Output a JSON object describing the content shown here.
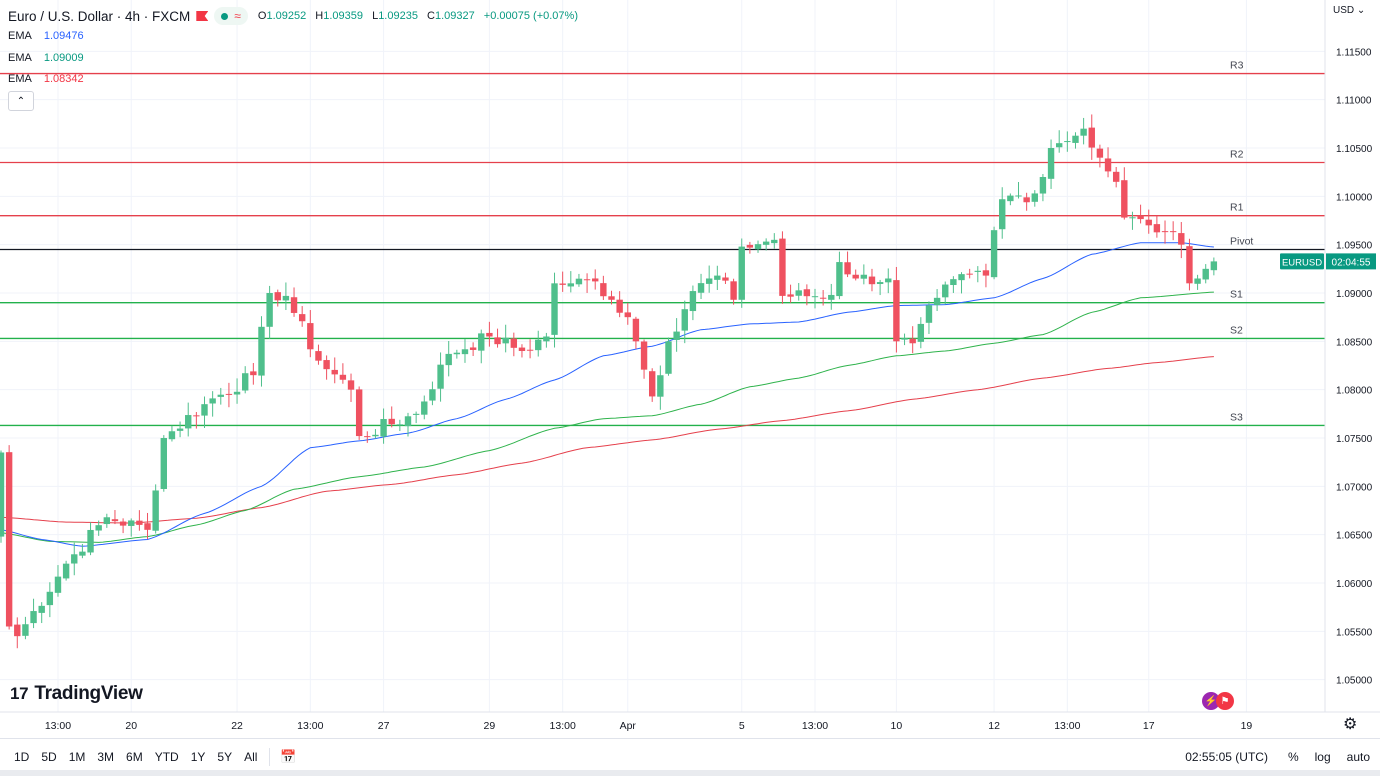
{
  "header": {
    "symbol": "Euro / U.S. Dollar · 4h · FXCM",
    "open_label": "O",
    "open": "1.09252",
    "high_label": "H",
    "high": "1.09359",
    "low_label": "L",
    "low": "1.09235",
    "close_label": "C",
    "close": "1.09327",
    "change": "+0.00075 (+0.07%)",
    "icons": [
      "flag-icon",
      "status-dot-icon",
      "wave-icon"
    ]
  },
  "indicators": [
    {
      "label": "EMA",
      "value": "1.09476",
      "color": "#2962ff"
    },
    {
      "label": "EMA",
      "value": "1.09009",
      "color": "#089981"
    },
    {
      "label": "EMA",
      "value": "1.08342",
      "color": "#f23645"
    }
  ],
  "price_scale": {
    "currency": "USD"
  },
  "symbol_tag": {
    "name": "EURUSD",
    "countdown": "02:04:55",
    "color": "#089981"
  },
  "logo_text": "TradingView",
  "bottom_bar": {
    "timeframes": [
      "1D",
      "5D",
      "1M",
      "3M",
      "6M",
      "YTD",
      "1Y",
      "5Y",
      "All"
    ],
    "clock": "02:55:05 (UTC)",
    "percent": "%",
    "log": "log",
    "auto": "auto"
  },
  "colors": {
    "up": "#4fbf8c",
    "down": "#ef5160",
    "ema_fast": "#2962ff",
    "ema_mid": "#2fb34c",
    "ema_slow": "#e5404c",
    "resistance": "#e5404c",
    "support": "#22b14c",
    "pivot": "#131722"
  },
  "chart_data": {
    "type": "candlestick",
    "title": "",
    "y_axis": {
      "ylim": [
        1.045,
        1.12
      ],
      "ticks": [
        "1.05000",
        "1.05500",
        "1.06000",
        "1.06500",
        "1.07000",
        "1.07500",
        "1.08000",
        "1.08500",
        "1.09000",
        "1.09500",
        "1.10000",
        "1.10500",
        "1.11000",
        "1.11500"
      ]
    },
    "x_axis": {
      "ticks": [
        {
          "label": "13:00",
          "bar": 7
        },
        {
          "label": "20",
          "bar": 16
        },
        {
          "label": "22",
          "bar": 29
        },
        {
          "label": "13:00",
          "bar": 38
        },
        {
          "label": "27",
          "bar": 47
        },
        {
          "label": "29",
          "bar": 60
        },
        {
          "label": "13:00",
          "bar": 69
        },
        {
          "label": "Apr",
          "bar": 77
        },
        {
          "label": "5",
          "bar": 91
        },
        {
          "label": "13:00",
          "bar": 100
        },
        {
          "label": "10",
          "bar": 110
        },
        {
          "label": "12",
          "bar": 122
        },
        {
          "label": "13:00",
          "bar": 131
        },
        {
          "label": "17",
          "bar": 141
        },
        {
          "label": "19",
          "bar": 153
        }
      ]
    },
    "levels": [
      {
        "name": "R3",
        "value": 1.1127,
        "kind": "resistance"
      },
      {
        "name": "R2",
        "value": 1.1035,
        "kind": "resistance"
      },
      {
        "name": "R1",
        "value": 1.098,
        "kind": "resistance"
      },
      {
        "name": "Pivot",
        "value": 1.0945,
        "kind": "pivot"
      },
      {
        "name": "S1",
        "value": 1.089,
        "kind": "support"
      },
      {
        "name": "S2",
        "value": 1.0853,
        "kind": "support"
      },
      {
        "name": "S3",
        "value": 1.0763,
        "kind": "support"
      }
    ],
    "key_closes": [
      {
        "bar": 0,
        "close": 1.0735
      },
      {
        "bar": 1,
        "close": 1.0555
      },
      {
        "bar": 2,
        "close": 1.0545
      },
      {
        "bar": 8,
        "close": 1.062
      },
      {
        "bar": 13,
        "close": 1.0668
      },
      {
        "bar": 18,
        "close": 1.0655
      },
      {
        "bar": 20,
        "close": 1.075
      },
      {
        "bar": 25,
        "close": 1.0785
      },
      {
        "bar": 31,
        "close": 1.0815
      },
      {
        "bar": 33,
        "close": 1.09
      },
      {
        "bar": 35,
        "close": 1.0897
      },
      {
        "bar": 39,
        "close": 1.083
      },
      {
        "bar": 43,
        "close": 1.08
      },
      {
        "bar": 44,
        "close": 1.0752
      },
      {
        "bar": 51,
        "close": 1.0775
      },
      {
        "bar": 55,
        "close": 1.0837
      },
      {
        "bar": 60,
        "close": 1.0855
      },
      {
        "bar": 64,
        "close": 1.084
      },
      {
        "bar": 67,
        "close": 1.0855
      },
      {
        "bar": 68,
        "close": 1.091
      },
      {
        "bar": 70,
        "close": 1.091
      },
      {
        "bar": 73,
        "close": 1.0912
      },
      {
        "bar": 75,
        "close": 1.0893
      },
      {
        "bar": 77,
        "close": 1.0875
      },
      {
        "bar": 78,
        "close": 1.085
      },
      {
        "bar": 80,
        "close": 1.0793
      },
      {
        "bar": 82,
        "close": 1.085
      },
      {
        "bar": 85,
        "close": 1.0902
      },
      {
        "bar": 88,
        "close": 1.0918
      },
      {
        "bar": 90,
        "close": 1.0893
      },
      {
        "bar": 91,
        "close": 1.0948
      },
      {
        "bar": 95,
        "close": 1.0955
      },
      {
        "bar": 96,
        "close": 1.0897
      },
      {
        "bar": 102,
        "close": 1.0898
      },
      {
        "bar": 103,
        "close": 1.0932
      },
      {
        "bar": 105,
        "close": 1.0915
      },
      {
        "bar": 109,
        "close": 1.0915
      },
      {
        "bar": 110,
        "close": 1.085
      },
      {
        "bar": 112,
        "close": 1.0848
      },
      {
        "bar": 113,
        "close": 1.0868
      },
      {
        "bar": 115,
        "close": 1.0895
      },
      {
        "bar": 119,
        "close": 1.092
      },
      {
        "bar": 121,
        "close": 1.0918
      },
      {
        "bar": 122,
        "close": 1.0965
      },
      {
        "bar": 123,
        "close": 1.0997
      },
      {
        "bar": 127,
        "close": 1.1003
      },
      {
        "bar": 128,
        "close": 1.102
      },
      {
        "bar": 129,
        "close": 1.105
      },
      {
        "bar": 130,
        "close": 1.1055
      },
      {
        "bar": 133,
        "close": 1.107
      },
      {
        "bar": 135,
        "close": 1.104
      },
      {
        "bar": 137,
        "close": 1.1015
      },
      {
        "bar": 138,
        "close": 1.0978
      },
      {
        "bar": 141,
        "close": 1.097
      },
      {
        "bar": 143,
        "close": 1.0963
      },
      {
        "bar": 145,
        "close": 1.095
      },
      {
        "bar": 146,
        "close": 1.091
      },
      {
        "bar": 147,
        "close": 1.0915
      },
      {
        "bar": 148,
        "close": 1.0925
      },
      {
        "bar": 149,
        "close": 1.09327
      }
    ],
    "ema_fast": [
      {
        "bar": 0,
        "v": 1.0655
      },
      {
        "bar": 5,
        "v": 1.0645
      },
      {
        "bar": 10,
        "v": 1.0638
      },
      {
        "bar": 18,
        "v": 1.0645
      },
      {
        "bar": 25,
        "v": 1.0672
      },
      {
        "bar": 32,
        "v": 1.07
      },
      {
        "bar": 38,
        "v": 1.074
      },
      {
        "bar": 44,
        "v": 1.0747
      },
      {
        "bar": 50,
        "v": 1.0755
      },
      {
        "bar": 56,
        "v": 1.077
      },
      {
        "bar": 62,
        "v": 1.079
      },
      {
        "bar": 68,
        "v": 1.081
      },
      {
        "bar": 74,
        "v": 1.0835
      },
      {
        "bar": 80,
        "v": 1.0845
      },
      {
        "bar": 86,
        "v": 1.0862
      },
      {
        "bar": 92,
        "v": 1.0868
      },
      {
        "bar": 98,
        "v": 1.087
      },
      {
        "bar": 104,
        "v": 1.088
      },
      {
        "bar": 110,
        "v": 1.0887
      },
      {
        "bar": 116,
        "v": 1.0888
      },
      {
        "bar": 122,
        "v": 1.0895
      },
      {
        "bar": 128,
        "v": 1.0915
      },
      {
        "bar": 134,
        "v": 1.094
      },
      {
        "bar": 140,
        "v": 1.0952
      },
      {
        "bar": 145,
        "v": 1.0952
      },
      {
        "bar": 149,
        "v": 1.09476
      }
    ],
    "ema_mid": [
      {
        "bar": 0,
        "v": 1.0652
      },
      {
        "bar": 6,
        "v": 1.0643
      },
      {
        "bar": 12,
        "v": 1.0642
      },
      {
        "bar": 18,
        "v": 1.0648
      },
      {
        "bar": 24,
        "v": 1.066
      },
      {
        "bar": 30,
        "v": 1.0675
      },
      {
        "bar": 36,
        "v": 1.0697
      },
      {
        "bar": 44,
        "v": 1.071
      },
      {
        "bar": 52,
        "v": 1.072
      },
      {
        "bar": 60,
        "v": 1.0737
      },
      {
        "bar": 68,
        "v": 1.076
      },
      {
        "bar": 74,
        "v": 1.077
      },
      {
        "bar": 80,
        "v": 1.0773
      },
      {
        "bar": 86,
        "v": 1.0785
      },
      {
        "bar": 92,
        "v": 1.0803
      },
      {
        "bar": 98,
        "v": 1.0812
      },
      {
        "bar": 104,
        "v": 1.0825
      },
      {
        "bar": 110,
        "v": 1.0835
      },
      {
        "bar": 116,
        "v": 1.084
      },
      {
        "bar": 122,
        "v": 1.0848
      },
      {
        "bar": 128,
        "v": 1.0857
      },
      {
        "bar": 134,
        "v": 1.088
      },
      {
        "bar": 140,
        "v": 1.0895
      },
      {
        "bar": 149,
        "v": 1.09009
      }
    ],
    "ema_slow": [
      {
        "bar": 0,
        "v": 1.0668
      },
      {
        "bar": 8,
        "v": 1.0663
      },
      {
        "bar": 16,
        "v": 1.0662
      },
      {
        "bar": 24,
        "v": 1.0667
      },
      {
        "bar": 32,
        "v": 1.0678
      },
      {
        "bar": 40,
        "v": 1.0695
      },
      {
        "bar": 48,
        "v": 1.0702
      },
      {
        "bar": 56,
        "v": 1.0712
      },
      {
        "bar": 64,
        "v": 1.0724
      },
      {
        "bar": 72,
        "v": 1.074
      },
      {
        "bar": 80,
        "v": 1.0748
      },
      {
        "bar": 88,
        "v": 1.0759
      },
      {
        "bar": 96,
        "v": 1.0768
      },
      {
        "bar": 104,
        "v": 1.0778
      },
      {
        "bar": 112,
        "v": 1.079
      },
      {
        "bar": 120,
        "v": 1.08
      },
      {
        "bar": 128,
        "v": 1.0812
      },
      {
        "bar": 136,
        "v": 1.0822
      },
      {
        "bar": 142,
        "v": 1.0828
      },
      {
        "bar": 149,
        "v": 1.08342
      }
    ]
  }
}
